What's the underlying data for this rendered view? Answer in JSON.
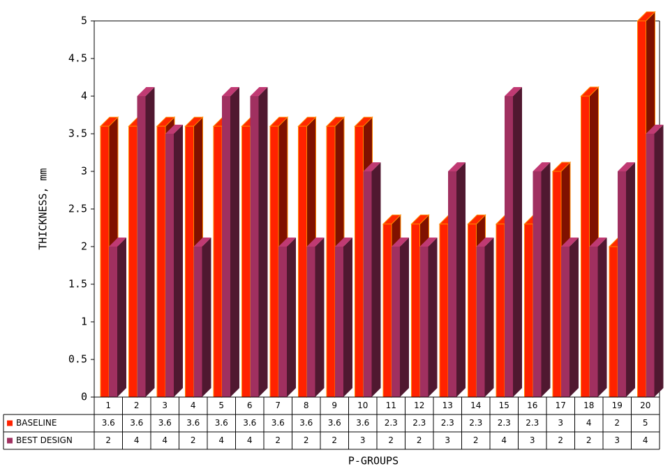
{
  "chart_data": {
    "type": "bar3d",
    "y_label": "THICKNESS, mm",
    "x_label": "P-GROUPS",
    "categories": [
      "1",
      "2",
      "3",
      "4",
      "5",
      "6",
      "7",
      "8",
      "9",
      "10",
      "11",
      "12",
      "13",
      "14",
      "15",
      "16",
      "17",
      "18",
      "19",
      "20"
    ],
    "series": [
      {
        "name": "BASELINE",
        "color": "#ff2200",
        "values": [
          3.6,
          3.6,
          3.6,
          3.6,
          3.6,
          3.6,
          3.6,
          3.6,
          3.6,
          3.6,
          2.3,
          2.3,
          2.3,
          2.3,
          2.3,
          2.3,
          3,
          4,
          2,
          5
        ]
      },
      {
        "name": "BEST DESIGN",
        "color": "#a03060",
        "values": [
          2,
          4,
          3.5,
          2,
          4,
          4,
          2,
          2,
          2,
          3,
          2,
          2,
          3,
          2,
          4,
          3,
          2,
          2,
          3,
          3.5
        ],
        "value_labels": [
          "2",
          "4",
          "4",
          "2",
          "4",
          "4",
          "2",
          "2",
          "2",
          "3",
          "2",
          "2",
          "3",
          "2",
          "4",
          "3",
          "2",
          "2",
          "3",
          "4"
        ]
      }
    ],
    "ylim": [
      0,
      5
    ],
    "yticks": [
      0,
      0.5,
      1,
      1.5,
      2,
      2.5,
      3,
      3.5,
      4,
      4.5,
      5
    ],
    "grid": false
  }
}
